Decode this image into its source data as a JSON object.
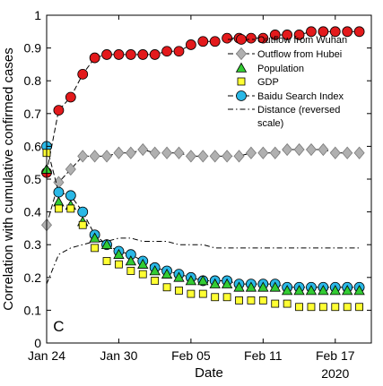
{
  "chart_data": {
    "type": "line",
    "panel_label": "C",
    "xlabel": "Date",
    "ylabel": "Correlation with cumulative confirmed cases",
    "year_label": "2020",
    "xlim": [
      0,
      27
    ],
    "ylim": [
      0,
      1
    ],
    "x_ticks": [
      {
        "x": 0,
        "label": "Jan 24"
      },
      {
        "x": 6,
        "label": "Jan 30"
      },
      {
        "x": 12,
        "label": "Feb 05"
      },
      {
        "x": 18,
        "label": "Feb 11"
      },
      {
        "x": 24,
        "label": "Feb 17"
      }
    ],
    "y_ticks": [
      0,
      0.1,
      0.2,
      0.3,
      0.4,
      0.5,
      0.6,
      0.7,
      0.8,
      0.9,
      1
    ],
    "y_tick_labels": [
      "0",
      "0.1",
      "0.2",
      "0.3",
      "0.4",
      "0.5",
      "0.6",
      "0.7",
      "0.8",
      "0.9",
      "1"
    ],
    "grid": false,
    "legend_position": "top-right",
    "x": [
      0,
      1,
      2,
      3,
      4,
      5,
      6,
      7,
      8,
      9,
      10,
      11,
      12,
      13,
      14,
      15,
      16,
      17,
      18,
      19,
      20,
      21,
      22,
      23,
      24,
      25,
      26
    ],
    "series": [
      {
        "name": "Outflow from Wuhan",
        "color": "#e31a1c",
        "marker": "circle",
        "line": "dashed",
        "values": [
          0.52,
          0.71,
          0.75,
          0.82,
          0.87,
          0.88,
          0.88,
          0.88,
          0.88,
          0.88,
          0.89,
          0.89,
          0.91,
          0.92,
          0.92,
          0.93,
          0.93,
          0.93,
          0.93,
          0.94,
          0.94,
          0.94,
          0.95,
          0.95,
          0.95,
          0.95,
          0.95
        ]
      },
      {
        "name": "Outflow from Hubei",
        "color": "#b0b0b0",
        "marker": "diamond",
        "line": "dashed",
        "values": [
          0.36,
          0.49,
          0.53,
          0.57,
          0.57,
          0.57,
          0.58,
          0.58,
          0.59,
          0.58,
          0.58,
          0.58,
          0.57,
          0.57,
          0.57,
          0.57,
          0.57,
          0.58,
          0.58,
          0.58,
          0.59,
          0.59,
          0.59,
          0.59,
          0.58,
          0.58,
          0.58
        ]
      },
      {
        "name": "Population",
        "color": "#33cc33",
        "marker": "triangle",
        "line": "none",
        "values": [
          0.53,
          0.43,
          0.42,
          0.37,
          0.32,
          0.3,
          0.27,
          0.25,
          0.24,
          0.22,
          0.21,
          0.2,
          0.19,
          0.19,
          0.18,
          0.18,
          0.17,
          0.17,
          0.17,
          0.17,
          0.16,
          0.16,
          0.16,
          0.16,
          0.16,
          0.16,
          0.16
        ]
      },
      {
        "name": "GDP",
        "color": "#ffff33",
        "marker": "square",
        "line": "none",
        "values": [
          0.58,
          0.41,
          0.41,
          0.36,
          0.29,
          0.25,
          0.24,
          0.22,
          0.21,
          0.19,
          0.17,
          0.16,
          0.15,
          0.15,
          0.14,
          0.14,
          0.13,
          0.13,
          0.13,
          0.12,
          0.12,
          0.11,
          0.11,
          0.11,
          0.11,
          0.11,
          0.11
        ]
      },
      {
        "name": "Baidu Search Index",
        "color": "#2ab8e6",
        "marker": "circle",
        "line": "dashed",
        "values": [
          0.6,
          0.46,
          0.45,
          0.4,
          0.33,
          0.3,
          0.28,
          0.27,
          0.25,
          0.23,
          0.22,
          0.21,
          0.2,
          0.19,
          0.19,
          0.19,
          0.18,
          0.18,
          0.18,
          0.18,
          0.17,
          0.17,
          0.17,
          0.17,
          0.17,
          0.17,
          0.17
        ]
      },
      {
        "name": "Distance (reversed scale)",
        "legend_lines": [
          "Distance (reversed",
          "scale)"
        ],
        "color": "#000000",
        "marker": "none",
        "line": "dashdot",
        "values": [
          0.18,
          0.27,
          0.29,
          0.3,
          0.31,
          0.31,
          0.32,
          0.32,
          0.31,
          0.31,
          0.31,
          0.3,
          0.3,
          0.3,
          0.29,
          0.29,
          0.29,
          0.29,
          0.29,
          0.29,
          0.29,
          0.29,
          0.29,
          0.29,
          0.29,
          0.29,
          0.29
        ]
      }
    ]
  }
}
